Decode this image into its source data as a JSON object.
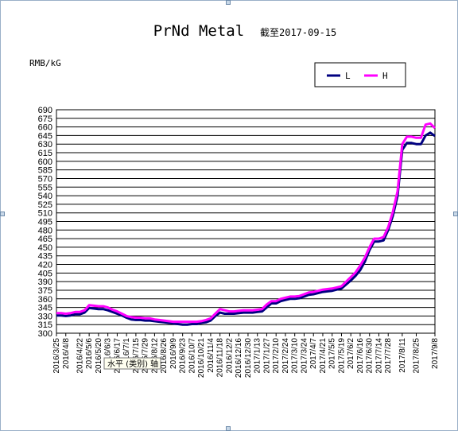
{
  "chart_data": {
    "type": "line",
    "title": "PrNd Metal",
    "subtitle": "截至2017-09-15",
    "ylabel": "RMB/kG",
    "ylim": [
      300,
      690
    ],
    "yticks": [
      300,
      315,
      330,
      345,
      360,
      375,
      390,
      405,
      420,
      435,
      450,
      465,
      480,
      495,
      510,
      525,
      540,
      555,
      570,
      585,
      600,
      615,
      630,
      645,
      660,
      675,
      690
    ],
    "x": [
      "2016/3/25",
      "2016/4/8",
      "2016/4/22",
      "2016/5/6",
      "2016/5/20",
      "2016/6/3",
      "2016/6/17",
      "2016/7/1",
      "2016/7/15",
      "2016/7/29",
      "2016/8/12",
      "2016/8/26",
      "2016/9/9",
      "2016/9/23",
      "2016/10/7",
      "2016/10/21",
      "2016/11/4",
      "2016/11/18",
      "2016/12/2",
      "2016/12/16",
      "2016/12/30",
      "2017/1/13",
      "2017/1/27",
      "2017/2/10",
      "2017/2/24",
      "2017/3/10",
      "2017/3/24",
      "2017/4/7",
      "2017/4/21",
      "2017/5/5",
      "2017/5/19",
      "2017/6/2",
      "2017/6/16",
      "2017/6/30",
      "2017/7/14",
      "2017/7/28",
      "2017/8/11",
      "2017/8/25",
      "2017/9/8"
    ],
    "grid": true,
    "legend_position": "top-right",
    "series": [
      {
        "name": "L",
        "color": "#000080",
        "values": [
          [
            0,
            331
          ],
          [
            1,
            331
          ],
          [
            2,
            330
          ],
          [
            3,
            331
          ],
          [
            4,
            333
          ],
          [
            5,
            333
          ],
          [
            6,
            336
          ],
          [
            7,
            344
          ],
          [
            8,
            343
          ],
          [
            9,
            342
          ],
          [
            10,
            342
          ],
          [
            11,
            340
          ],
          [
            12,
            337
          ],
          [
            13,
            334
          ],
          [
            14,
            331
          ],
          [
            15,
            327
          ],
          [
            16,
            324
          ],
          [
            17,
            323
          ],
          [
            18,
            323
          ],
          [
            19,
            322
          ],
          [
            20,
            322
          ],
          [
            21,
            321
          ],
          [
            22,
            320
          ],
          [
            23,
            319
          ],
          [
            24,
            318
          ],
          [
            25,
            317
          ],
          [
            26,
            316
          ],
          [
            27,
            315
          ],
          [
            28,
            315
          ],
          [
            29,
            316
          ],
          [
            30,
            316
          ],
          [
            31,
            318
          ],
          [
            32,
            319
          ],
          [
            33,
            322
          ],
          [
            34,
            330
          ],
          [
            35,
            336
          ],
          [
            36,
            334
          ],
          [
            37,
            334
          ],
          [
            38,
            334
          ],
          [
            39,
            335
          ],
          [
            40,
            336
          ],
          [
            41,
            336
          ],
          [
            42,
            336
          ],
          [
            43,
            337
          ],
          [
            44,
            338
          ],
          [
            45,
            345
          ],
          [
            46,
            352
          ],
          [
            47,
            352
          ],
          [
            48,
            356
          ],
          [
            49,
            358
          ],
          [
            50,
            360
          ],
          [
            51,
            360
          ],
          [
            52,
            361
          ],
          [
            53,
            364
          ],
          [
            54,
            367
          ],
          [
            55,
            368
          ],
          [
            56,
            370
          ],
          [
            57,
            372
          ],
          [
            58,
            373
          ],
          [
            59,
            374
          ],
          [
            60,
            376
          ],
          [
            61,
            378
          ],
          [
            62,
            385
          ],
          [
            63,
            392
          ],
          [
            64,
            400
          ],
          [
            65,
            410
          ],
          [
            66,
            425
          ],
          [
            67,
            445
          ],
          [
            68,
            460
          ],
          [
            69,
            460
          ],
          [
            70,
            462
          ],
          [
            71,
            480
          ],
          [
            72,
            505
          ],
          [
            73,
            540
          ],
          [
            74,
            620
          ],
          [
            75,
            632
          ],
          [
            76,
            632
          ],
          [
            77,
            630
          ],
          [
            78,
            630
          ],
          [
            79,
            645
          ],
          [
            80,
            650
          ],
          [
            81,
            644
          ]
        ]
      },
      {
        "name": "H",
        "color": "#ff00ff",
        "values": [
          [
            0,
            335
          ],
          [
            1,
            335
          ],
          [
            2,
            334
          ],
          [
            3,
            335
          ],
          [
            4,
            337
          ],
          [
            5,
            337
          ],
          [
            6,
            340
          ],
          [
            7,
            349
          ],
          [
            8,
            348
          ],
          [
            9,
            347
          ],
          [
            10,
            347
          ],
          [
            11,
            345
          ],
          [
            12,
            341
          ],
          [
            13,
            338
          ],
          [
            14,
            334
          ],
          [
            15,
            330
          ],
          [
            16,
            328
          ],
          [
            17,
            327
          ],
          [
            18,
            327
          ],
          [
            19,
            326
          ],
          [
            20,
            326
          ],
          [
            21,
            324
          ],
          [
            22,
            323
          ],
          [
            23,
            322
          ],
          [
            24,
            321
          ],
          [
            25,
            320
          ],
          [
            26,
            320
          ],
          [
            27,
            320
          ],
          [
            28,
            320
          ],
          [
            29,
            320
          ],
          [
            30,
            320
          ],
          [
            31,
            321
          ],
          [
            32,
            323
          ],
          [
            33,
            326
          ],
          [
            34,
            334
          ],
          [
            35,
            342
          ],
          [
            36,
            340
          ],
          [
            37,
            338
          ],
          [
            38,
            338
          ],
          [
            39,
            339
          ],
          [
            40,
            340
          ],
          [
            41,
            340
          ],
          [
            42,
            340
          ],
          [
            43,
            341
          ],
          [
            44,
            342
          ],
          [
            45,
            350
          ],
          [
            46,
            356
          ],
          [
            47,
            356
          ],
          [
            48,
            360
          ],
          [
            49,
            362
          ],
          [
            50,
            364
          ],
          [
            51,
            364
          ],
          [
            52,
            365
          ],
          [
            53,
            368
          ],
          [
            54,
            371
          ],
          [
            55,
            372
          ],
          [
            56,
            374
          ],
          [
            57,
            376
          ],
          [
            58,
            377
          ],
          [
            59,
            378
          ],
          [
            60,
            380
          ],
          [
            61,
            382
          ],
          [
            62,
            390
          ],
          [
            63,
            398
          ],
          [
            64,
            406
          ],
          [
            65,
            418
          ],
          [
            66,
            432
          ],
          [
            67,
            450
          ],
          [
            68,
            465
          ],
          [
            69,
            465
          ],
          [
            70,
            468
          ],
          [
            71,
            485
          ],
          [
            72,
            512
          ],
          [
            73,
            548
          ],
          [
            74,
            630
          ],
          [
            75,
            643
          ],
          [
            76,
            643
          ],
          [
            77,
            641
          ],
          [
            78,
            641
          ],
          [
            79,
            664
          ],
          [
            80,
            666
          ],
          [
            81,
            658
          ]
        ]
      }
    ],
    "x_index_max": 81,
    "x_tick_index": [
      0,
      2,
      5,
      7,
      9,
      11,
      13,
      15,
      17,
      19,
      21,
      23,
      25,
      27,
      29,
      31,
      33,
      35,
      37,
      39,
      41,
      43,
      45,
      47,
      49,
      51,
      53,
      55,
      57,
      59,
      61,
      63,
      65,
      67,
      69,
      71,
      74,
      77,
      81
    ]
  },
  "ui": {
    "tooltip": "水平 (类别) 轴",
    "colors": {
      "border": "#9ab0c8",
      "grid": "#000000",
      "plot_bg": "#ffffff"
    }
  }
}
